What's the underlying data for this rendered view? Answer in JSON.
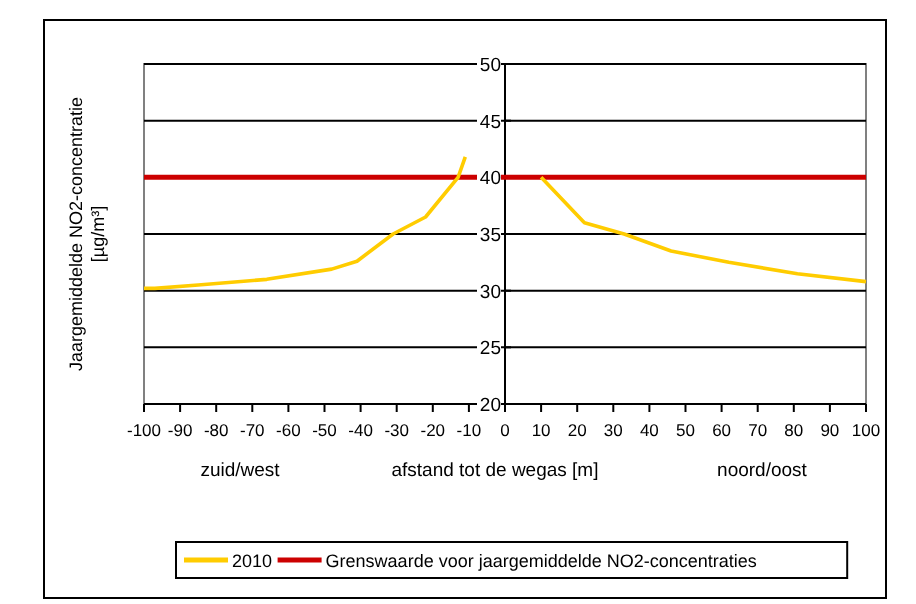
{
  "chart_data": {
    "type": "line",
    "xlabel": "afstand tot de wegas [m]",
    "ylabel": "Jaargemiddelde NO2-concentratie [µg/m³]",
    "x": [
      -100,
      -97,
      -85,
      -66,
      -48,
      -41,
      -31,
      -22,
      -13,
      -11,
      0,
      10,
      22,
      33,
      46,
      62,
      81,
      100
    ],
    "series": [
      {
        "name": "2010",
        "color": "#ffcc00",
        "values": [
          30.2,
          30.2,
          30.5,
          31.0,
          31.9,
          32.6,
          35,
          36.5,
          40,
          41.8,
          null,
          40,
          36,
          35,
          33.5,
          32.5,
          31.5,
          30.8
        ]
      }
    ],
    "xlim": [
      -100,
      100
    ],
    "xticks": [
      -100,
      -90,
      -80,
      -70,
      -60,
      -50,
      -40,
      -30,
      -20,
      -10,
      0,
      10,
      20,
      30,
      40,
      50,
      60,
      70,
      80,
      90,
      100
    ],
    "ylim": [
      20,
      50
    ],
    "yticks": [
      20,
      25,
      30,
      35,
      40,
      45,
      50
    ],
    "grid": "y",
    "legend": "bottom",
    "marker": "none",
    "line_style": "solid",
    "ref_lines": [
      {
        "axis": "y",
        "value": 40,
        "label": "Grenswaarde voor jaargemiddelde NO2-concentraties",
        "color": "#cc0000"
      }
    ],
    "annotations": [
      "zuid/west",
      "noord/oost"
    ]
  }
}
